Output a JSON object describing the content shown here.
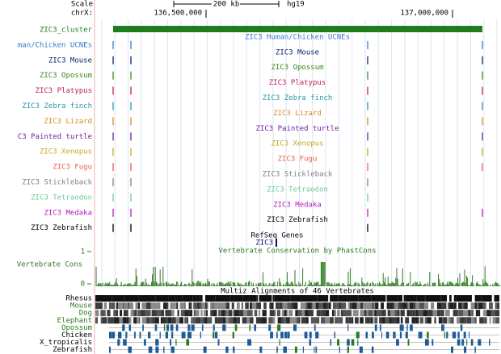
{
  "ruler": {
    "scale_label": "Scale",
    "scale_value": "200 kb",
    "assembly": "hg19",
    "chrom": "chrX:",
    "positions": [
      "136,500,000",
      "137,000,000"
    ]
  },
  "tracks": [
    {
      "label": "ZIC3_cluster",
      "title": "ZIC3_cluster",
      "color": "#1e7d1e"
    },
    {
      "label": "man/Chicken UCNEs",
      "title": "ZIC3 Human/Chicken UCNEs",
      "color": "#3a78c8"
    },
    {
      "label": "ZIC3 Mouse",
      "title": "ZIC3 Mouse",
      "color": "#10206e"
    },
    {
      "label": "ZIC3 Opossum",
      "title": "ZIC3 Opossum",
      "color": "#3a8a20"
    },
    {
      "label": "ZIC3 Platypus",
      "title": "ZIC3 Platypus",
      "color": "#c01e5a"
    },
    {
      "label": "ZIC3 Zebra finch",
      "title": "ZIC3 Zebra finch",
      "color": "#2496a8"
    },
    {
      "label": "ZIC3 Lizard",
      "title": "ZIC3 Lizard",
      "color": "#d88a20"
    },
    {
      "label": "C3 Painted turtle",
      "title": "ZIC3 Painted turtle",
      "color": "#6e1ea0"
    },
    {
      "label": "ZIC3 Xenopus",
      "title": "ZIC3 Xenopus",
      "color": "#c8a81e"
    },
    {
      "label": "ZIC3 Fugu",
      "title": "ZIC3 Fugu",
      "color": "#e8604a"
    },
    {
      "label": "ZIC3 Stickleback",
      "title": "ZIC3 Stickleback",
      "color": "#808080"
    },
    {
      "label": "ZIC3 Tetraodon",
      "title": "ZIC3 Tetraodon",
      "color": "#70c896"
    },
    {
      "label": "ZIC3 Medaka",
      "title": "ZIC3 Medaka",
      "color": "#b41eb4"
    },
    {
      "label": "ZIC3 Zebrafish",
      "title": "ZIC3 Zebrafish",
      "color": "#000000"
    }
  ],
  "refseq": {
    "title": "RefSeq Genes",
    "gene": "ZIC3"
  },
  "conservation": {
    "title": "Vertebrate Conservation by PhastCons",
    "label": "Vertebrate Cons",
    "max": "1",
    "min": "0",
    "color": "#2d7a1e"
  },
  "multiz": {
    "title": "Multiz Alignments of 46 Vertebrates",
    "species": [
      {
        "name": "Rhesus",
        "color": "#000000"
      },
      {
        "name": "Mouse",
        "color": "#2d7a1e"
      },
      {
        "name": "Dog",
        "color": "#2d7a1e"
      },
      {
        "name": "Elephant",
        "color": "#2d7a1e"
      },
      {
        "name": "Opossum",
        "color": "#2d7a1e"
      },
      {
        "name": "Chicken",
        "color": "#000000"
      },
      {
        "name": "X_tropicalis",
        "color": "#000000"
      },
      {
        "name": "Zebrafish",
        "color": "#000000"
      }
    ]
  }
}
